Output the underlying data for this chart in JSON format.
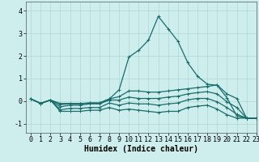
{
  "xlabel": "Humidex (Indice chaleur)",
  "xlim": [
    -0.5,
    23
  ],
  "ylim": [
    -1.4,
    4.4
  ],
  "bg_color": "#ceeeed",
  "grid_color": "#aed8d4",
  "line_color": "#1a6b6b",
  "x": [
    0,
    1,
    2,
    3,
    4,
    5,
    6,
    7,
    8,
    9,
    10,
    11,
    12,
    13,
    14,
    15,
    16,
    17,
    18,
    19,
    20,
    21,
    22,
    23
  ],
  "lines": [
    [
      0.1,
      -0.1,
      0.05,
      -0.1,
      -0.1,
      -0.1,
      -0.08,
      -0.08,
      0.1,
      0.5,
      1.95,
      2.25,
      2.7,
      3.75,
      3.2,
      2.65,
      1.7,
      1.1,
      0.75,
      0.7,
      0.15,
      -0.65,
      -0.75,
      -0.75
    ],
    [
      0.1,
      -0.1,
      0.05,
      -0.15,
      -0.12,
      -0.12,
      -0.08,
      -0.08,
      0.1,
      0.2,
      0.45,
      0.45,
      0.4,
      0.4,
      0.45,
      0.5,
      0.55,
      0.6,
      0.65,
      0.72,
      0.32,
      0.12,
      -0.75,
      -0.75
    ],
    [
      0.1,
      -0.1,
      0.05,
      -0.25,
      -0.18,
      -0.18,
      -0.12,
      -0.12,
      0.05,
      0.05,
      0.18,
      0.12,
      0.12,
      0.12,
      0.18,
      0.22,
      0.32,
      0.38,
      0.42,
      0.32,
      -0.03,
      -0.28,
      -0.75,
      -0.75
    ],
    [
      0.1,
      -0.1,
      0.05,
      -0.38,
      -0.32,
      -0.32,
      -0.28,
      -0.28,
      -0.08,
      -0.18,
      -0.08,
      -0.12,
      -0.12,
      -0.18,
      -0.12,
      -0.08,
      0.06,
      0.12,
      0.12,
      -0.03,
      -0.28,
      -0.58,
      -0.75,
      -0.75
    ],
    [
      0.1,
      -0.1,
      0.05,
      -0.45,
      -0.45,
      -0.45,
      -0.4,
      -0.4,
      -0.28,
      -0.4,
      -0.35,
      -0.4,
      -0.45,
      -0.5,
      -0.45,
      -0.45,
      -0.28,
      -0.22,
      -0.18,
      -0.35,
      -0.6,
      -0.75,
      -0.75,
      -0.75
    ]
  ],
  "yticks": [
    -1,
    0,
    1,
    2,
    3,
    4
  ],
  "xticks": [
    0,
    1,
    2,
    3,
    4,
    5,
    6,
    7,
    8,
    9,
    10,
    11,
    12,
    13,
    14,
    15,
    16,
    17,
    18,
    19,
    20,
    21,
    22,
    23
  ],
  "marker": "+",
  "markersize": 3,
  "linewidth": 0.9,
  "fontsize_xlabel": 7,
  "fontsize_ticks": 6
}
